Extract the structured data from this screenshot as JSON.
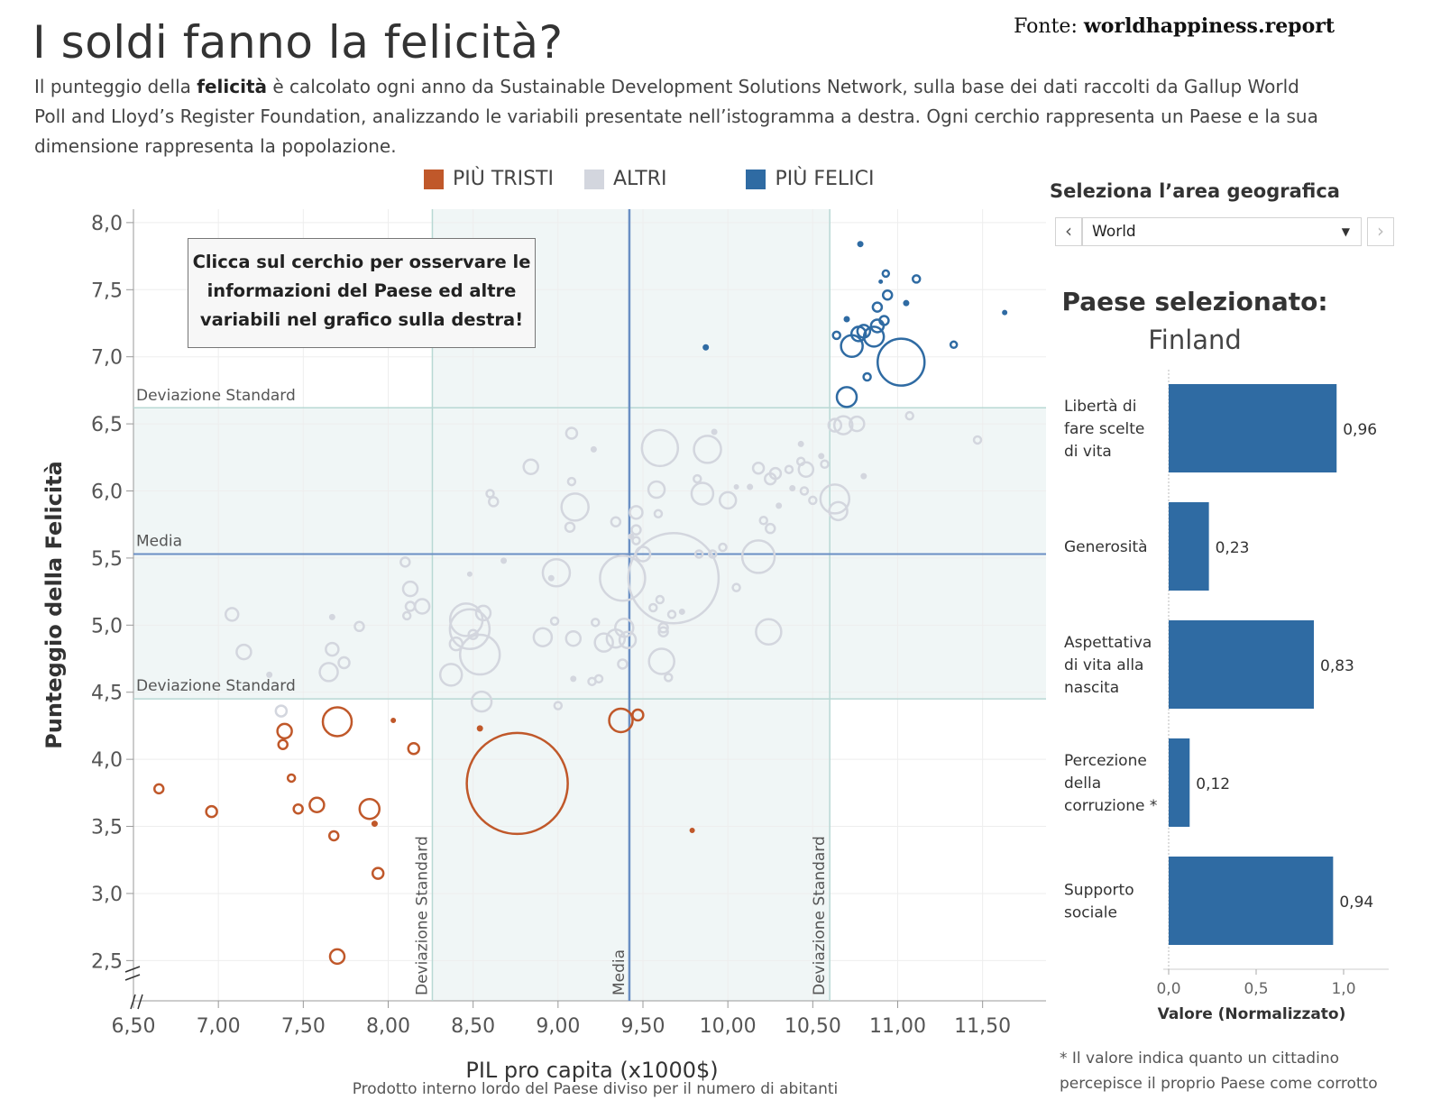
{
  "header": {
    "title": "I soldi fanno la felicità?",
    "source_prefix": "Fonte:",
    "source_site": "worldhappiness.report",
    "subtitle_part1": "Il punteggio della ",
    "subtitle_bold": "felicità",
    "subtitle_part2": " è calcolato ogni anno da Sustainable Development Solutions Network, sulla base dei dati raccolti da  Gallup World Poll and Lloyd’s Register Foundation, analizzando le variabili presentate nell’istogramma a destra. Ogni cerchio rappresenta un Paese e la sua dimensione rappresenta la popolazione."
  },
  "legend": [
    {
      "label": "PIÙ TRISTI",
      "color": "#c0582a"
    },
    {
      "label": "ALTRI",
      "color": "#d3d6de"
    },
    {
      "label": "PIÙ FELICI",
      "color": "#2f6ba3"
    }
  ],
  "callout": "Clicca sul cerchio per osservare le informazioni del Paese ed altre variabili nel grafico sulla destra!",
  "panel": {
    "geo_label": "Seleziona l’area geografica",
    "prev_icon": "chevron-left-icon",
    "next_icon": "chevron-right-icon",
    "selected_area": "World",
    "selected_title": "Paese selezionato:",
    "selected_country": "Finland",
    "footnote": "* Il valore indica quanto un cittadino percepisce il proprio Paese come corrotto"
  },
  "colors": {
    "sad": "#c0582a",
    "other": "#d3d6de",
    "happy": "#2f6ba3",
    "ref_line": "#6a8fc4",
    "band": "#f0f6f6",
    "sd_line": "#b8d8d4",
    "bar": "#2f6ba3"
  },
  "chart_data": [
    {
      "type": "scatter",
      "title": "",
      "xlabel": "PIL pro capita (x1000$)",
      "xlabel_sub": "Prodotto interno lordo del Paese diviso per il numero di abitanti",
      "ylabel": "Punteggio della Felicità",
      "xlim": [
        6.5,
        11.9
      ],
      "ylim": [
        2.2,
        8.1
      ],
      "xticks": [
        "6,50",
        "7,00",
        "7,50",
        "8,00",
        "8,50",
        "9,00",
        "9,50",
        "10,00",
        "10,50",
        "11,00",
        "11,50"
      ],
      "yticks": [
        "2,5",
        "3,0",
        "3,5",
        "4,0",
        "4,5",
        "5,0",
        "5,5",
        "6,0",
        "6,5",
        "7,0",
        "7,5",
        "8,0"
      ],
      "reference_lines": {
        "mean_x": 9.42,
        "sd_x_low": 8.26,
        "sd_x_high": 10.6,
        "mean_y": 5.53,
        "sd_y_low": 4.45,
        "sd_y_high": 6.62,
        "label_mean": "Media",
        "label_sd": "Deviazione Standard"
      },
      "grid": true,
      "points": [
        {
          "x": 11.02,
          "y": 6.96,
          "r": 26,
          "g": "happy"
        },
        {
          "x": 10.78,
          "y": 7.84,
          "r": 3,
          "g": "happy"
        },
        {
          "x": 10.93,
          "y": 7.62,
          "r": 3.5,
          "g": "happy"
        },
        {
          "x": 10.9,
          "y": 7.56,
          "r": 2,
          "g": "happy"
        },
        {
          "x": 11.11,
          "y": 7.58,
          "r": 4,
          "g": "happy"
        },
        {
          "x": 10.94,
          "y": 7.46,
          "r": 5,
          "g": "happy"
        },
        {
          "x": 11.05,
          "y": 7.4,
          "r": 3,
          "g": "happy"
        },
        {
          "x": 10.88,
          "y": 7.37,
          "r": 5,
          "g": "happy"
        },
        {
          "x": 10.7,
          "y": 7.28,
          "r": 3,
          "g": "happy"
        },
        {
          "x": 10.92,
          "y": 7.27,
          "r": 5,
          "g": "happy"
        },
        {
          "x": 10.88,
          "y": 7.23,
          "r": 7,
          "g": "happy"
        },
        {
          "x": 10.8,
          "y": 7.19,
          "r": 7,
          "g": "happy"
        },
        {
          "x": 10.77,
          "y": 7.17,
          "r": 8,
          "g": "happy"
        },
        {
          "x": 10.64,
          "y": 7.16,
          "r": 4,
          "g": "happy"
        },
        {
          "x": 10.86,
          "y": 7.15,
          "r": 11,
          "g": "happy"
        },
        {
          "x": 10.73,
          "y": 7.08,
          "r": 12,
          "g": "happy"
        },
        {
          "x": 11.33,
          "y": 7.09,
          "r": 3.5,
          "g": "happy"
        },
        {
          "x": 11.63,
          "y": 7.33,
          "r": 2.5,
          "g": "happy"
        },
        {
          "x": 9.87,
          "y": 7.07,
          "r": 3,
          "g": "happy"
        },
        {
          "x": 10.82,
          "y": 6.85,
          "r": 4,
          "g": "happy"
        },
        {
          "x": 10.7,
          "y": 6.7,
          "r": 11,
          "g": "happy"
        },
        {
          "x": 9.6,
          "y": 6.32,
          "r": 20,
          "g": "other"
        },
        {
          "x": 9.88,
          "y": 6.31,
          "r": 15,
          "g": "other"
        },
        {
          "x": 9.08,
          "y": 6.43,
          "r": 6,
          "g": "other"
        },
        {
          "x": 9.21,
          "y": 6.31,
          "r": 3,
          "g": "other"
        },
        {
          "x": 9.92,
          "y": 6.44,
          "r": 3,
          "g": "other"
        },
        {
          "x": 10.63,
          "y": 6.49,
          "r": 7,
          "g": "other"
        },
        {
          "x": 10.68,
          "y": 6.49,
          "r": 10,
          "g": "other"
        },
        {
          "x": 10.76,
          "y": 6.5,
          "r": 8,
          "g": "other"
        },
        {
          "x": 11.07,
          "y": 6.56,
          "r": 4,
          "g": "other"
        },
        {
          "x": 11.47,
          "y": 6.38,
          "r": 4,
          "g": "other"
        },
        {
          "x": 10.43,
          "y": 6.35,
          "r": 3,
          "g": "other"
        },
        {
          "x": 10.55,
          "y": 6.26,
          "r": 3,
          "g": "other"
        },
        {
          "x": 10.57,
          "y": 6.2,
          "r": 4,
          "g": "other"
        },
        {
          "x": 10.46,
          "y": 6.16,
          "r": 8,
          "g": "other"
        },
        {
          "x": 10.43,
          "y": 6.22,
          "r": 4,
          "g": "other"
        },
        {
          "x": 10.36,
          "y": 6.16,
          "r": 4,
          "g": "other"
        },
        {
          "x": 10.28,
          "y": 6.13,
          "r": 6,
          "g": "other"
        },
        {
          "x": 10.18,
          "y": 6.17,
          "r": 6,
          "g": "other"
        },
        {
          "x": 10.25,
          "y": 6.09,
          "r": 6,
          "g": "other"
        },
        {
          "x": 10.8,
          "y": 6.11,
          "r": 3,
          "g": "other"
        },
        {
          "x": 10.13,
          "y": 6.03,
          "r": 3,
          "g": "other"
        },
        {
          "x": 10.45,
          "y": 6.0,
          "r": 4,
          "g": "other"
        },
        {
          "x": 10.38,
          "y": 6.02,
          "r": 3,
          "g": "other"
        },
        {
          "x": 10.63,
          "y": 5.94,
          "r": 16,
          "g": "other"
        },
        {
          "x": 10.5,
          "y": 5.93,
          "r": 4,
          "g": "other"
        },
        {
          "x": 10.65,
          "y": 5.85,
          "r": 10,
          "g": "other"
        },
        {
          "x": 10.3,
          "y": 5.89,
          "r": 3,
          "g": "other"
        },
        {
          "x": 10.21,
          "y": 5.78,
          "r": 4,
          "g": "other"
        },
        {
          "x": 10.0,
          "y": 5.93,
          "r": 9,
          "g": "other"
        },
        {
          "x": 9.85,
          "y": 5.98,
          "r": 12,
          "g": "other"
        },
        {
          "x": 9.58,
          "y": 6.01,
          "r": 9,
          "g": "other"
        },
        {
          "x": 9.82,
          "y": 6.09,
          "r": 4,
          "g": "other"
        },
        {
          "x": 10.05,
          "y": 6.03,
          "r": 2.5,
          "g": "other"
        },
        {
          "x": 9.08,
          "y": 6.07,
          "r": 4,
          "g": "other"
        },
        {
          "x": 8.84,
          "y": 6.18,
          "r": 8,
          "g": "other"
        },
        {
          "x": 8.6,
          "y": 5.98,
          "r": 4,
          "g": "other"
        },
        {
          "x": 8.62,
          "y": 5.92,
          "r": 5,
          "g": "other"
        },
        {
          "x": 9.1,
          "y": 5.88,
          "r": 15,
          "g": "other"
        },
        {
          "x": 9.46,
          "y": 5.84,
          "r": 7,
          "g": "other"
        },
        {
          "x": 9.59,
          "y": 5.83,
          "r": 4,
          "g": "other"
        },
        {
          "x": 9.46,
          "y": 5.71,
          "r": 5,
          "g": "other"
        },
        {
          "x": 9.34,
          "y": 5.77,
          "r": 5,
          "g": "other"
        },
        {
          "x": 9.07,
          "y": 5.73,
          "r": 5,
          "g": "other"
        },
        {
          "x": 9.43,
          "y": 5.66,
          "r": 3,
          "g": "other"
        },
        {
          "x": 9.46,
          "y": 5.63,
          "r": 4,
          "g": "other"
        },
        {
          "x": 9.5,
          "y": 5.53,
          "r": 8,
          "g": "other"
        },
        {
          "x": 9.97,
          "y": 5.58,
          "r": 4,
          "g": "other"
        },
        {
          "x": 9.91,
          "y": 5.53,
          "r": 4,
          "g": "other"
        },
        {
          "x": 9.83,
          "y": 5.53,
          "r": 4,
          "g": "other"
        },
        {
          "x": 10.18,
          "y": 5.51,
          "r": 18,
          "g": "other"
        },
        {
          "x": 10.25,
          "y": 5.72,
          "r": 5,
          "g": "other"
        },
        {
          "x": 10.05,
          "y": 5.28,
          "r": 4,
          "g": "other"
        },
        {
          "x": 9.68,
          "y": 5.35,
          "r": 50,
          "g": "other"
        },
        {
          "x": 9.38,
          "y": 5.35,
          "r": 25,
          "g": "other"
        },
        {
          "x": 8.48,
          "y": 5.38,
          "r": 2.5,
          "g": "other"
        },
        {
          "x": 8.99,
          "y": 5.39,
          "r": 15,
          "g": "other"
        },
        {
          "x": 8.68,
          "y": 5.48,
          "r": 3,
          "g": "other"
        },
        {
          "x": 8.96,
          "y": 5.35,
          "r": 3,
          "g": "other"
        },
        {
          "x": 8.1,
          "y": 5.47,
          "r": 5,
          "g": "other"
        },
        {
          "x": 8.13,
          "y": 5.27,
          "r": 8,
          "g": "other"
        },
        {
          "x": 8.13,
          "y": 5.14,
          "r": 5,
          "g": "other"
        },
        {
          "x": 8.2,
          "y": 5.14,
          "r": 8,
          "g": "other"
        },
        {
          "x": 8.11,
          "y": 5.07,
          "r": 4,
          "g": "other"
        },
        {
          "x": 8.46,
          "y": 5.04,
          "r": 18,
          "g": "other"
        },
        {
          "x": 8.56,
          "y": 5.09,
          "r": 8,
          "g": "other"
        },
        {
          "x": 8.48,
          "y": 4.97,
          "r": 22,
          "g": "other"
        },
        {
          "x": 8.4,
          "y": 4.86,
          "r": 7,
          "g": "other"
        },
        {
          "x": 8.54,
          "y": 4.78,
          "r": 22,
          "g": "other"
        },
        {
          "x": 8.5,
          "y": 4.93,
          "r": 5,
          "g": "other"
        },
        {
          "x": 8.37,
          "y": 4.63,
          "r": 12,
          "g": "other"
        },
        {
          "x": 8.55,
          "y": 4.43,
          "r": 11,
          "g": "other"
        },
        {
          "x": 8.91,
          "y": 4.91,
          "r": 10,
          "g": "other"
        },
        {
          "x": 8.98,
          "y": 5.03,
          "r": 4,
          "g": "other"
        },
        {
          "x": 9.09,
          "y": 4.9,
          "r": 8,
          "g": "other"
        },
        {
          "x": 9.27,
          "y": 4.87,
          "r": 10,
          "g": "other"
        },
        {
          "x": 9.34,
          "y": 4.9,
          "r": 10,
          "g": "other"
        },
        {
          "x": 9.39,
          "y": 4.98,
          "r": 10,
          "g": "other"
        },
        {
          "x": 9.41,
          "y": 4.89,
          "r": 9,
          "g": "other"
        },
        {
          "x": 9.38,
          "y": 4.71,
          "r": 5,
          "g": "other"
        },
        {
          "x": 9.22,
          "y": 5.02,
          "r": 4,
          "g": "other"
        },
        {
          "x": 9.62,
          "y": 4.98,
          "r": 5,
          "g": "other"
        },
        {
          "x": 9.62,
          "y": 4.95,
          "r": 5,
          "g": "other"
        },
        {
          "x": 9.56,
          "y": 5.13,
          "r": 4,
          "g": "other"
        },
        {
          "x": 9.6,
          "y": 5.19,
          "r": 4,
          "g": "other"
        },
        {
          "x": 9.67,
          "y": 5.08,
          "r": 4,
          "g": "other"
        },
        {
          "x": 9.73,
          "y": 5.1,
          "r": 3,
          "g": "other"
        },
        {
          "x": 10.24,
          "y": 4.95,
          "r": 14,
          "g": "other"
        },
        {
          "x": 9.61,
          "y": 4.73,
          "r": 14,
          "g": "other"
        },
        {
          "x": 9.65,
          "y": 4.61,
          "r": 4,
          "g": "other"
        },
        {
          "x": 9.2,
          "y": 4.58,
          "r": 4,
          "g": "other"
        },
        {
          "x": 9.09,
          "y": 4.6,
          "r": 3,
          "g": "other"
        },
        {
          "x": 9.0,
          "y": 4.4,
          "r": 4,
          "g": "other"
        },
        {
          "x": 9.24,
          "y": 4.6,
          "r": 4,
          "g": "other"
        },
        {
          "x": 7.08,
          "y": 5.08,
          "r": 7,
          "g": "other"
        },
        {
          "x": 7.15,
          "y": 4.8,
          "r": 8,
          "g": "other"
        },
        {
          "x": 7.3,
          "y": 4.63,
          "r": 3,
          "g": "other"
        },
        {
          "x": 7.37,
          "y": 4.36,
          "r": 6,
          "g": "other"
        },
        {
          "x": 7.67,
          "y": 5.06,
          "r": 3,
          "g": "other"
        },
        {
          "x": 7.67,
          "y": 4.82,
          "r": 7,
          "g": "other"
        },
        {
          "x": 7.65,
          "y": 4.65,
          "r": 10,
          "g": "other"
        },
        {
          "x": 7.74,
          "y": 4.72,
          "r": 6,
          "g": "other"
        },
        {
          "x": 7.83,
          "y": 4.99,
          "r": 5,
          "g": "other"
        },
        {
          "x": 8.76,
          "y": 3.82,
          "r": 56,
          "g": "sad"
        },
        {
          "x": 7.7,
          "y": 4.28,
          "r": 16,
          "g": "sad"
        },
        {
          "x": 7.39,
          "y": 4.21,
          "r": 8,
          "g": "sad"
        },
        {
          "x": 7.38,
          "y": 4.11,
          "r": 5,
          "g": "sad"
        },
        {
          "x": 7.43,
          "y": 3.86,
          "r": 4,
          "g": "sad"
        },
        {
          "x": 7.47,
          "y": 3.63,
          "r": 5,
          "g": "sad"
        },
        {
          "x": 7.58,
          "y": 3.66,
          "r": 8,
          "g": "sad"
        },
        {
          "x": 7.68,
          "y": 3.43,
          "r": 5,
          "g": "sad"
        },
        {
          "x": 7.89,
          "y": 3.63,
          "r": 11,
          "g": "sad"
        },
        {
          "x": 7.92,
          "y": 3.52,
          "r": 3,
          "g": "sad"
        },
        {
          "x": 7.94,
          "y": 3.15,
          "r": 6,
          "g": "sad"
        },
        {
          "x": 8.15,
          "y": 4.08,
          "r": 6,
          "g": "sad"
        },
        {
          "x": 8.03,
          "y": 4.29,
          "r": 2.5,
          "g": "sad"
        },
        {
          "x": 6.65,
          "y": 3.78,
          "r": 5,
          "g": "sad"
        },
        {
          "x": 6.96,
          "y": 3.61,
          "r": 6,
          "g": "sad"
        },
        {
          "x": 7.7,
          "y": 2.53,
          "r": 8,
          "g": "sad"
        },
        {
          "x": 8.54,
          "y": 4.23,
          "r": 3,
          "g": "sad"
        },
        {
          "x": 9.37,
          "y": 4.29,
          "r": 13,
          "g": "sad"
        },
        {
          "x": 9.47,
          "y": 4.33,
          "r": 6,
          "g": "sad"
        },
        {
          "x": 9.79,
          "y": 3.47,
          "r": 2.5,
          "g": "sad"
        }
      ]
    },
    {
      "type": "bar",
      "orientation": "horizontal",
      "categories": [
        "Libertà di fare scelte di vita",
        "Generosità",
        "Aspettativa di vita alla nascita",
        "Percezione della corruzione *",
        "Supporto sociale"
      ],
      "values": [
        0.96,
        0.23,
        0.83,
        0.12,
        0.94
      ],
      "value_labels": [
        "0,96",
        "0,23",
        "0,83",
        "0,12",
        "0,94"
      ],
      "xticks": [
        "0,0",
        "0,5",
        "1,0"
      ],
      "xlim": [
        0,
        1.3
      ],
      "xlabel": "Valore (Normalizzato)"
    }
  ]
}
